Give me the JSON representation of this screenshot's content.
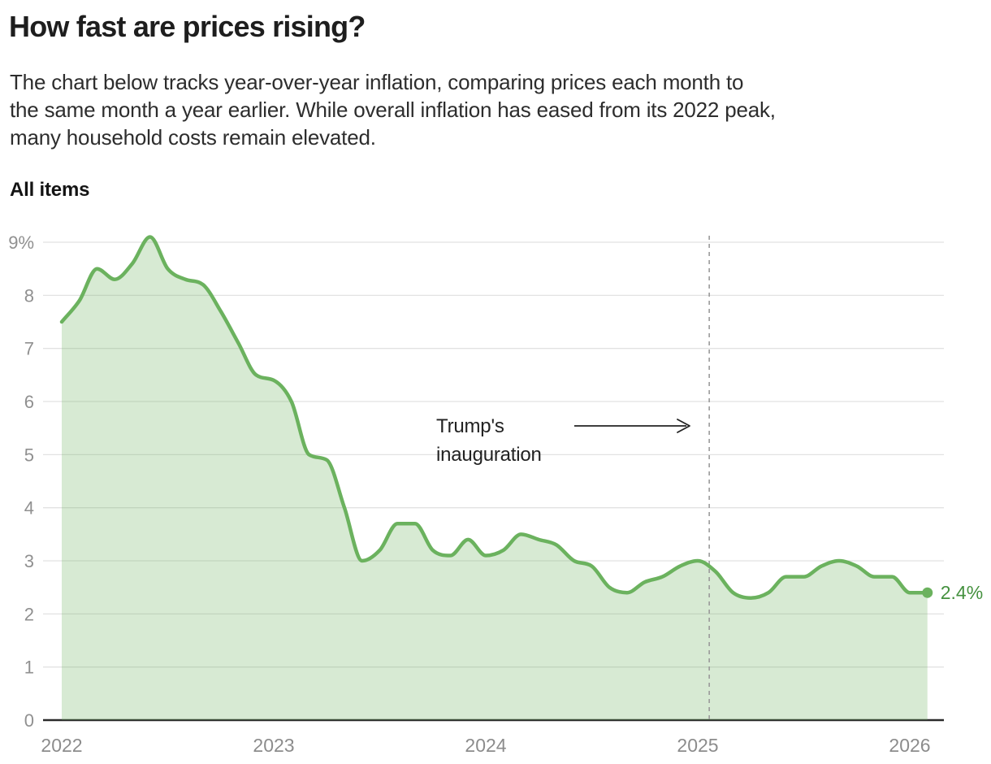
{
  "header": {
    "title": "How fast are prices rising?",
    "description_lines": [
      "The chart below tracks year-over-year inflation, comparing prices each month to",
      "the same month a year earlier. While overall inflation has eased from its 2022 peak,",
      "many household costs remain elevated."
    ]
  },
  "chart_data": {
    "type": "area",
    "title": "All items",
    "series_name": "All items — year-over-year inflation, %",
    "x_unit": "month",
    "x_range": [
      "2022-01",
      "2026-02"
    ],
    "x_ticks": [
      "2022",
      "2023",
      "2024",
      "2025",
      "2026"
    ],
    "y_ticks": [
      "0",
      "1",
      "2",
      "3",
      "4",
      "5",
      "6",
      "7",
      "8",
      "9%"
    ],
    "ylim": [
      0,
      9
    ],
    "grid": true,
    "values": [
      7.5,
      7.9,
      8.5,
      8.3,
      8.6,
      9.1,
      8.5,
      8.3,
      8.2,
      7.7,
      7.1,
      6.5,
      6.4,
      6.0,
      5.0,
      4.9,
      4.0,
      3.0,
      3.2,
      3.7,
      3.7,
      3.2,
      3.1,
      3.4,
      3.1,
      3.2,
      3.5,
      3.4,
      3.3,
      3.0,
      2.9,
      2.5,
      2.4,
      2.6,
      2.7,
      2.9,
      3.0,
      2.8,
      2.4,
      2.3,
      2.4,
      2.7,
      2.7,
      2.9,
      3.0,
      2.9,
      2.7,
      2.7,
      2.4,
      2.4
    ],
    "end_value": 2.4,
    "end_label": "2.4%",
    "annotation": {
      "line1": "Trump's",
      "line2": "inauguration",
      "event": "Trump's inauguration",
      "event_month_index": 36.65
    },
    "colors": {
      "line": "#6bb25e",
      "fill": "rgba(107,178,94,0.27)",
      "end_label": "#45913f",
      "grid": "#e2e2e2",
      "axis": "#2a2a2a",
      "tick": "#909090",
      "dashed": "#9a9a9a",
      "annotation": "#222222"
    }
  }
}
